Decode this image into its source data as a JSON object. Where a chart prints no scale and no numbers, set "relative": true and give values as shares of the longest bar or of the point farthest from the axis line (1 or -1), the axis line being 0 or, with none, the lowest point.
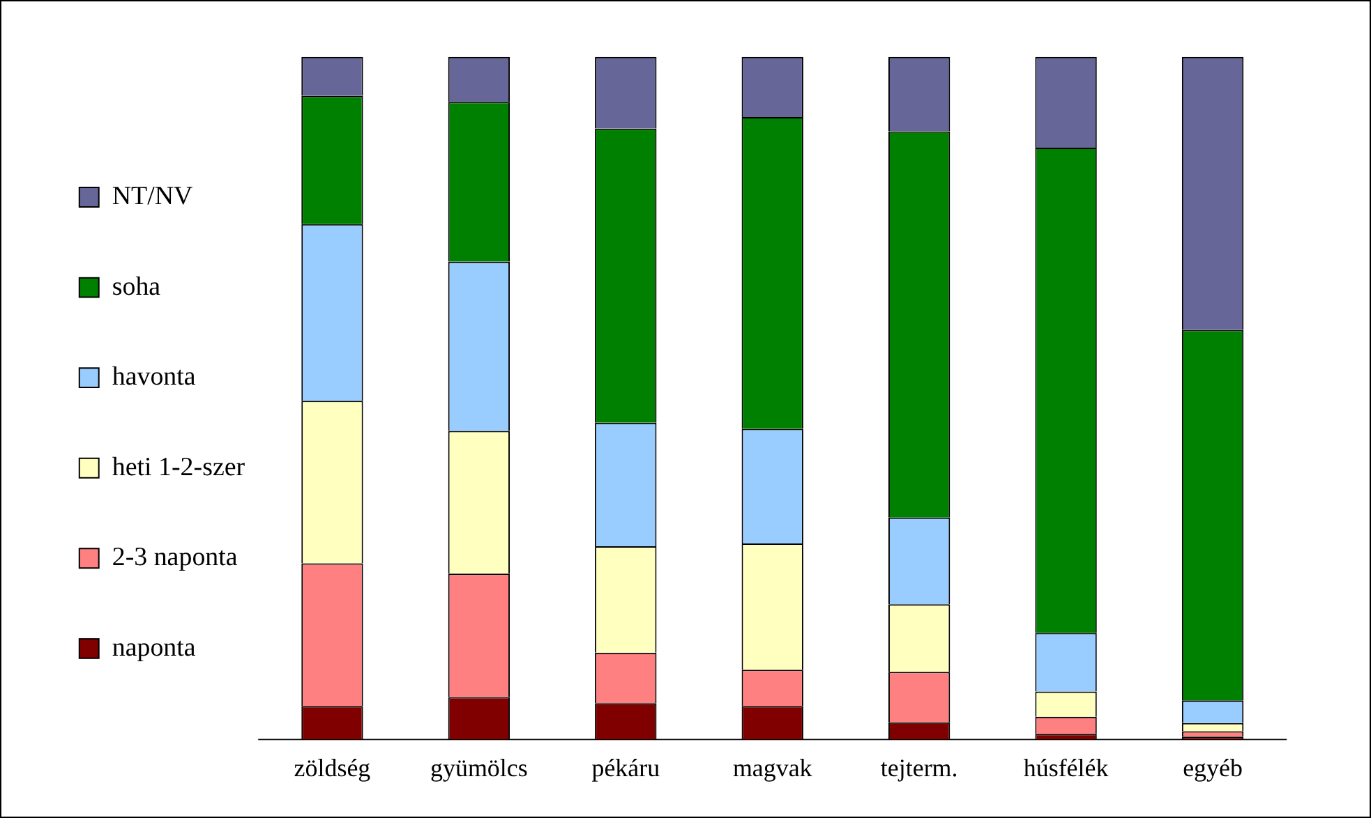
{
  "chart_data": {
    "type": "bar",
    "stacked": true,
    "relative": true,
    "legend": "left",
    "grid": false,
    "categories": [
      "zöldség",
      "gyümölcs",
      "pékáru",
      "magvak",
      "tejterm.",
      "húsfélék",
      "egyéb"
    ],
    "series": [
      {
        "name": "naponta",
        "color": "#800000",
        "values": [
          0.049,
          0.062,
          0.053,
          0.049,
          0.025,
          0.008,
          0.004
        ]
      },
      {
        "name": "2-3 naponta",
        "color": "#ff8080",
        "values": [
          0.209,
          0.181,
          0.074,
          0.053,
          0.074,
          0.025,
          0.008
        ]
      },
      {
        "name": "heti 1-2-szer",
        "color": "#ffffc0",
        "values": [
          0.238,
          0.209,
          0.156,
          0.185,
          0.099,
          0.037,
          0.012
        ]
      },
      {
        "name": "havonta",
        "color": "#99ccff",
        "values": [
          0.259,
          0.248,
          0.181,
          0.168,
          0.127,
          0.086,
          0.033
        ]
      },
      {
        "name": "soha",
        "color": "#008000",
        "values": [
          0.188,
          0.234,
          0.431,
          0.457,
          0.566,
          0.711,
          0.543
        ]
      },
      {
        "name": "NT/NV",
        "color": "#666699",
        "values": [
          0.057,
          0.066,
          0.105,
          0.088,
          0.109,
          0.133,
          0.4
        ]
      }
    ]
  }
}
